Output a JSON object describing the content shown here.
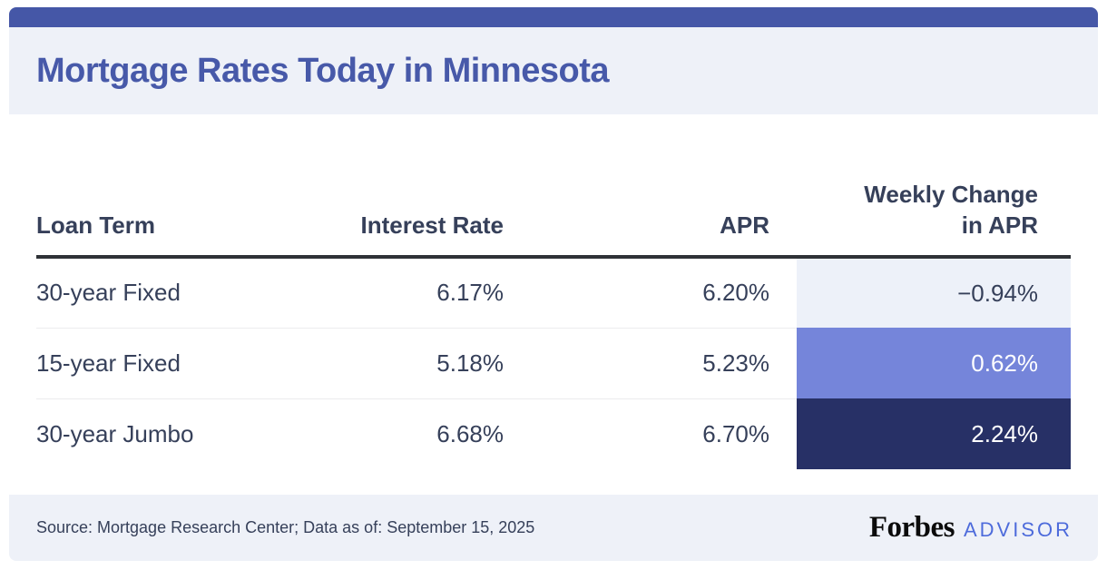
{
  "header": {
    "title": "Mortgage Rates Today in Minnesota"
  },
  "table": {
    "header": {
      "loan_term": "Loan Term",
      "interest_rate": "Interest Rate",
      "apr": "APR",
      "weekly_change_line1": "Weekly Change",
      "weekly_change_line2": "in APR"
    },
    "rows": [
      {
        "loan_term": "30-year Fixed",
        "interest_rate": "6.17%",
        "apr": "6.20%",
        "weekly_change": "−0.94%"
      },
      {
        "loan_term": "15-year Fixed",
        "interest_rate": "5.18%",
        "apr": "5.23%",
        "weekly_change": "0.62%"
      },
      {
        "loan_term": "30-year Jumbo",
        "interest_rate": "6.68%",
        "apr": "6.70%",
        "weekly_change": "2.24%"
      }
    ]
  },
  "footer": {
    "source": "Source: Mortgage Research Center; Data as of: September 15, 2025",
    "brand": "Forbes",
    "brand_suffix": "ADVISOR"
  },
  "colors": {
    "top_bar": "#4557A7",
    "title": "#4759A9",
    "panel_bg": "#EEF1F8",
    "text_dark": "#36405A",
    "header_border": "#2F3237",
    "row_divider": "#ECECEE",
    "cell_negative_bg": "#EDF1F9",
    "cell_mid_bg": "#7585DA",
    "cell_high_bg": "#273066",
    "advisor_blue": "#4D6BDB",
    "forbes_black": "#0B0B0B"
  },
  "chart_data": {
    "type": "table",
    "title": "Mortgage Rates Today in Minnesota",
    "columns": [
      "Loan Term",
      "Interest Rate",
      "APR",
      "Weekly Change in APR"
    ],
    "rows": [
      [
        "30-year Fixed",
        "6.17%",
        "6.20%",
        "-0.94%"
      ],
      [
        "15-year Fixed",
        "5.18%",
        "5.23%",
        "0.62%"
      ],
      [
        "30-year Jumbo",
        "6.68%",
        "6.70%",
        "2.24%"
      ]
    ],
    "weekly_change_values": [
      -0.94,
      0.62,
      2.24
    ],
    "weekly_change_cell_colors": [
      "#EDF1F9",
      "#7585DA",
      "#273066"
    ],
    "source": "Source: Mortgage Research Center; Data as of: September 15, 2025"
  }
}
